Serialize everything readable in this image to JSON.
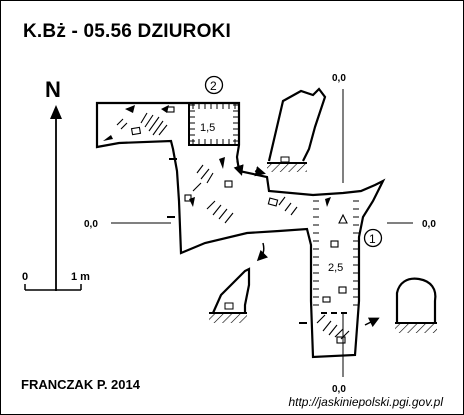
{
  "header": {
    "title": "K.Bż - 05.56  DZIUROKI"
  },
  "orientation": {
    "north_label": "N"
  },
  "scale": {
    "zero_label": "0",
    "one_label": "1 m"
  },
  "markers": {
    "cross_top": "0,0",
    "cross_left": "0,0",
    "cross_right": "0,0",
    "cross_bottom": "0,0",
    "cross_section_1": "①",
    "cross_section_2": "②"
  },
  "heights": {
    "upper_chamber": "1,5",
    "lower_chamber": "2,5"
  },
  "footer": {
    "author": "FRANCZAK P. 2014",
    "url": "http://jaskiniepolski.pgi.gov.pl"
  },
  "colors": {
    "ink": "#000000",
    "background": "#ffffff"
  }
}
